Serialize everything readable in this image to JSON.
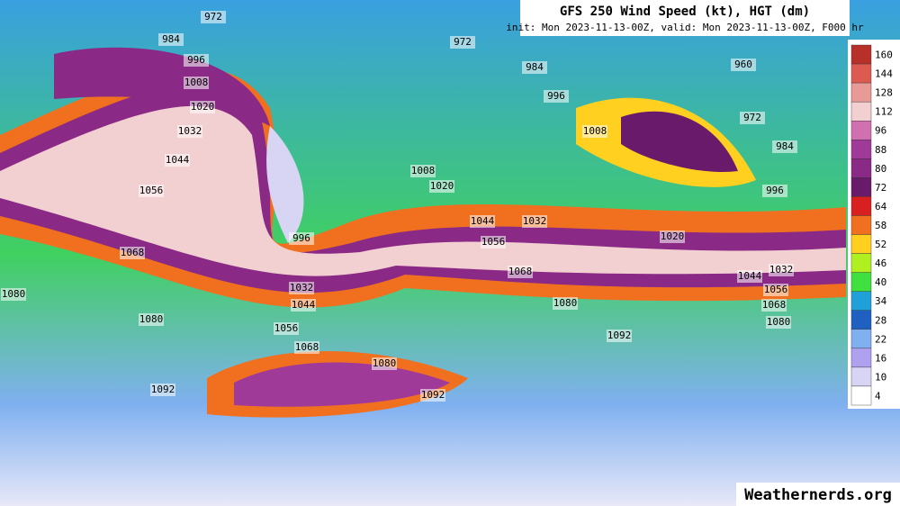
{
  "title": "GFS 250 Wind Speed (kt), HGT (dm)",
  "subtitle": "init: Mon 2023-11-13-00Z, valid: Mon 2023-11-13-00Z, F000 hr",
  "watermark": "Weathernerds.org",
  "colorbar": {
    "ticks": [
      160,
      144,
      128,
      112,
      96,
      88,
      80,
      72,
      64,
      58,
      52,
      46,
      40,
      34,
      28,
      22,
      16,
      10,
      4
    ],
    "colors": [
      "#b8302a",
      "#dc5a50",
      "#e89a96",
      "#f2cfd0",
      "#d070b0",
      "#a03a98",
      "#8a2a86",
      "#6a1a6a",
      "#d82020",
      "#f07020",
      "#ffd020",
      "#b0f020",
      "#40e040",
      "#20a0d8",
      "#2060c0",
      "#80b0f0",
      "#b0a0f0",
      "#d8d4f4",
      "#ffffff"
    ]
  },
  "contour_labels": [
    972,
    984,
    996,
    1008,
    1020,
    1032,
    1044,
    1056,
    1068,
    1080,
    1080,
    1092,
    996,
    1032,
    1044,
    1056,
    1068,
    1080,
    1092,
    972,
    984,
    996,
    1008,
    1008,
    1020,
    1044,
    1032,
    1056,
    1068,
    1020,
    1080,
    1092,
    960,
    972,
    984,
    996,
    1044,
    1032,
    1056,
    1068,
    1080
  ]
}
